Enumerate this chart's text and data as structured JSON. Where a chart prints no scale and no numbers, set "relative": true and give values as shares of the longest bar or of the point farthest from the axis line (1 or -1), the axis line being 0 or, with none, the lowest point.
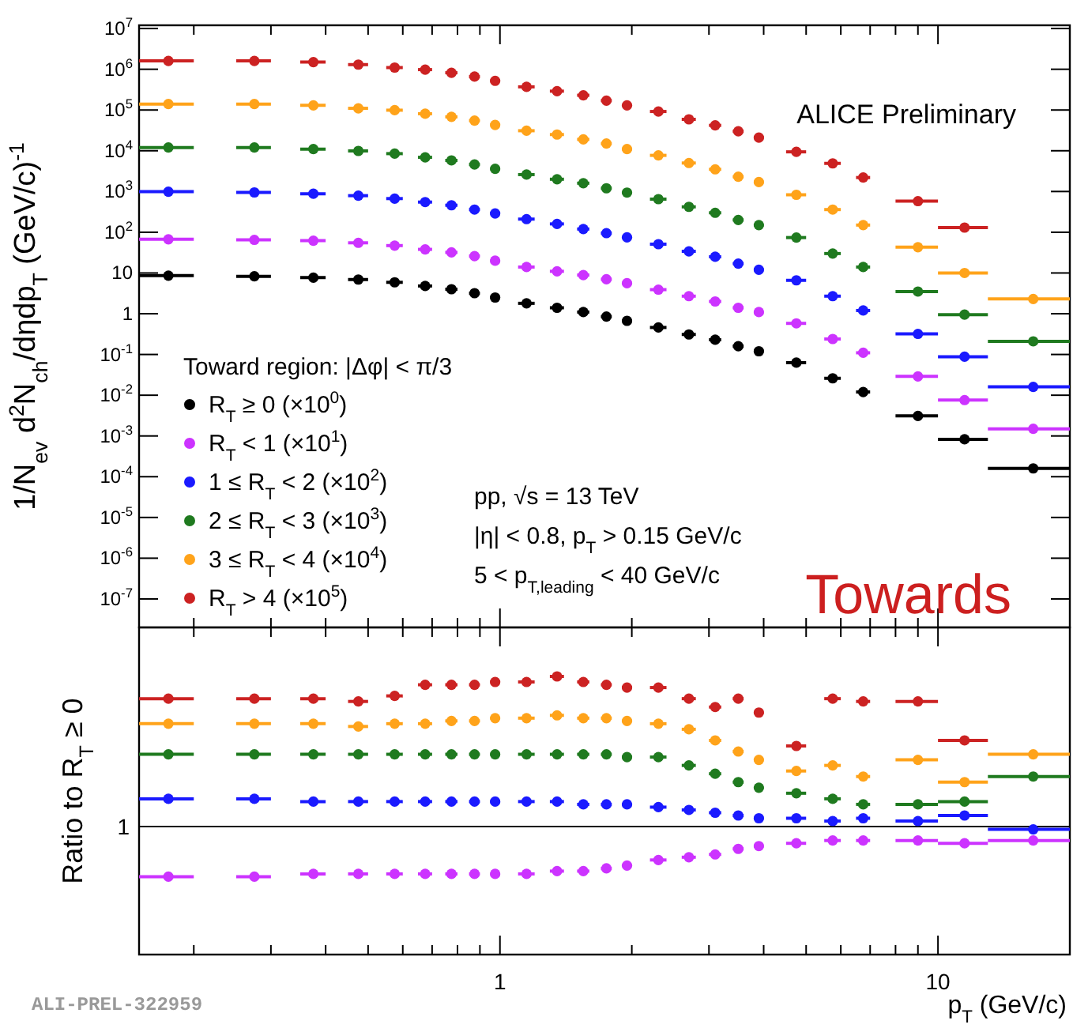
{
  "chart_data": [
    {
      "type": "scatter",
      "ylabel": "1/N$_{ev}$ d$^{2}$N$_{ch}$/dηdp$_{T}$ (GeV/c)$^{-1}$",
      "log": "xy",
      "xlim": [
        0.15,
        20
      ],
      "ylim": [
        2e-08,
        12000000.0
      ],
      "xticks": [
        {
          "value": 0.2,
          "label": null
        },
        {
          "value": 0.3,
          "label": null
        },
        {
          "value": 0.4,
          "label": null
        },
        {
          "value": 0.5,
          "label": null
        },
        {
          "value": 0.6,
          "label": null
        },
        {
          "value": 0.7,
          "label": null
        },
        {
          "value": 0.8,
          "label": null
        },
        {
          "value": 0.9,
          "label": null
        },
        {
          "value": 1,
          "label": null
        },
        {
          "value": 2,
          "label": null
        },
        {
          "value": 3,
          "label": null
        },
        {
          "value": 4,
          "label": null
        },
        {
          "value": 5,
          "label": null
        },
        {
          "value": 6,
          "label": null
        },
        {
          "value": 7,
          "label": null
        },
        {
          "value": 8,
          "label": null
        },
        {
          "value": 9,
          "label": null
        },
        {
          "value": 10,
          "label": null
        },
        {
          "value": 20,
          "label": null
        }
      ],
      "yticks": [
        {
          "value": 1e-07,
          "label": "10$^{-7}$"
        },
        {
          "value": 1e-06,
          "label": "10$^{-6}$"
        },
        {
          "value": 1e-05,
          "label": "10$^{-5}$"
        },
        {
          "value": 0.0001,
          "label": "10$^{-4}$"
        },
        {
          "value": 0.001,
          "label": "10$^{-3}$"
        },
        {
          "value": 0.01,
          "label": "10$^{-2}$"
        },
        {
          "value": 0.1,
          "label": "10$^{-1}$"
        },
        1,
        10,
        {
          "value": 100,
          "label": "10$^{2}$"
        },
        {
          "value": 1000,
          "label": "10$^{3}$"
        },
        {
          "value": 10000,
          "label": "10$^{4}$"
        },
        {
          "value": 100000,
          "label": "10$^{5}$"
        },
        {
          "value": 1000000,
          "label": "10$^{6}$"
        },
        {
          "value": 10000000,
          "label": "10$^{7}$"
        }
      ],
      "tick_labels": "y",
      "legend": "bottom left",
      "legend_title": "Toward region: |Δφ| < π/3",
      "marker": "circle",
      "x": [
        0.175,
        0.275,
        0.375,
        0.475,
        0.575,
        0.675,
        0.775,
        0.875,
        0.975,
        1.15,
        1.35,
        1.55,
        1.75,
        1.95,
        2.3,
        2.7,
        3.1,
        3.5,
        3.9,
        4.75,
        5.75,
        6.75,
        9,
        11.5,
        16.5
      ],
      "series": [
        {
          "name": "R$_{T}$ ≥ 0 (×10$^{0}$)",
          "color": "#000000",
          "values": [
            8.6,
            8.3,
            7.7,
            6.9,
            5.9,
            4.8,
            4.0,
            3.2,
            2.5,
            1.8,
            1.4,
            1.1,
            0.85,
            0.67,
            0.46,
            0.31,
            0.23,
            0.16,
            0.12,
            0.063,
            0.026,
            0.012,
            0.0031,
            0.00083,
            0.00016
          ],
          "xerrors": [
            0.025,
            0.025,
            0.025,
            0.025,
            0.025,
            0.025,
            0.025,
            0.025,
            0.025,
            0.05,
            0.05,
            0.05,
            0.05,
            0.05,
            0.1,
            0.1,
            0.1,
            0.1,
            0.1,
            0.25,
            0.25,
            0.25,
            1,
            1.5,
            3.5
          ]
        },
        {
          "name": "R$_{T}$ < 1 (×10$^{1}$)",
          "color": "#cc33ff",
          "values": [
            67,
            65,
            62,
            55,
            47,
            38,
            32,
            26,
            20,
            14,
            11,
            8.9,
            7.0,
            5.6,
            3.9,
            2.7,
            2.0,
            1.4,
            1.1,
            0.58,
            0.24,
            0.11,
            0.029,
            0.0076,
            0.0015
          ],
          "xerrors": [
            0.025,
            0.025,
            0.025,
            0.025,
            0.025,
            0.025,
            0.025,
            0.025,
            0.025,
            0.05,
            0.05,
            0.05,
            0.05,
            0.05,
            0.1,
            0.1,
            0.1,
            0.1,
            0.1,
            0.25,
            0.25,
            0.25,
            1,
            1.5,
            3.5
          ]
        },
        {
          "name": "1 ≤ R$_{T}$ < 2 (×10$^{2}$)",
          "color": "#1a1aff",
          "values": [
            990,
            950,
            880,
            790,
            670,
            550,
            460,
            360,
            290,
            210,
            160,
            120,
            95,
            75,
            51,
            34,
            25,
            17,
            12,
            6.6,
            2.7,
            1.2,
            0.32,
            0.088,
            0.016
          ],
          "xerrors": [
            0.025,
            0.025,
            0.025,
            0.025,
            0.025,
            0.025,
            0.025,
            0.025,
            0.025,
            0.05,
            0.05,
            0.05,
            0.05,
            0.05,
            0.1,
            0.1,
            0.1,
            0.1,
            0.1,
            0.25,
            0.25,
            0.25,
            1,
            1.5,
            3.5
          ]
        },
        {
          "name": "2 ≤ R$_{T}$ < 3 (×10$^{3}$)",
          "color": "#1f7a1f",
          "values": [
            12000,
            12000,
            11000,
            9900,
            8500,
            6900,
            5800,
            4600,
            3600,
            2600,
            2000,
            1600,
            1200,
            940,
            650,
            420,
            300,
            200,
            150,
            74,
            30,
            14,
            3.5,
            0.95,
            0.21
          ],
          "xerrors": [
            0.025,
            0.025,
            0.025,
            0.025,
            0.025,
            0.025,
            0.025,
            0.025,
            0.025,
            0.05,
            0.05,
            0.05,
            0.05,
            0.05,
            0.1,
            0.1,
            0.1,
            0.1,
            0.1,
            0.25,
            0.25,
            0.25,
            1,
            1.5,
            3.5
          ]
        },
        {
          "name": "3 ≤ R$_{T}$ < 4 (×10$^{4}$)",
          "color": "#ffa31a",
          "values": [
            140000,
            140000,
            130000,
            110000,
            99000,
            81000,
            68000,
            55000,
            43000,
            31000,
            25000,
            19000,
            15000,
            11000,
            7700,
            5000,
            3500,
            2300,
            1700,
            830,
            360,
            150,
            43,
            10,
            2.3
          ],
          "xerrors": [
            0.025,
            0.025,
            0.025,
            0.025,
            0.025,
            0.025,
            0.025,
            0.025,
            0.025,
            0.05,
            0.05,
            0.05,
            0.05,
            0.05,
            0.1,
            0.1,
            0.1,
            0.1,
            0.1,
            0.25,
            0.25,
            0.25,
            1,
            1.5,
            3.5
          ]
        },
        {
          "name": "R$_{T}$ > 4 (×10$^{5}$)",
          "color": "#cc2222",
          "values": [
            1600000,
            1600000,
            1500000,
            1300000,
            1100000,
            980000,
            820000,
            660000,
            520000,
            370000,
            290000,
            230000,
            170000,
            130000,
            92000,
            59000,
            42000,
            30000,
            21000,
            9400,
            4900,
            2200,
            580,
            130,
            null
          ],
          "xerrors": [
            0.025,
            0.025,
            0.025,
            0.025,
            0.025,
            0.025,
            0.025,
            0.025,
            0.025,
            0.05,
            0.05,
            0.05,
            0.05,
            0.05,
            0.1,
            0.1,
            0.1,
            0.1,
            0.1,
            0.25,
            0.25,
            0.25,
            1,
            1.5,
            null
          ]
        }
      ],
      "annotations": [
        "ALICE Preliminary",
        "pp, √s = 13 TeV",
        "|η| < 0.8, p$_{T}$ > 0.15 GeV/c",
        "5 < p$_{T,leading}$ < 40 GeV/c",
        "Towards"
      ]
    },
    {
      "type": "scatter",
      "xlabel": "p$_{T}$ (GeV/c)",
      "ylabel": "Ratio to R$_{T}$ ≥ 0",
      "log": "x",
      "xlim": [
        0.15,
        20
      ],
      "xticks": [
        {
          "value": 0.2,
          "label": null
        },
        {
          "value": 0.3,
          "label": null
        },
        {
          "value": 0.4,
          "label": null
        },
        {
          "value": 0.5,
          "label": null
        },
        {
          "value": 0.6,
          "label": null
        },
        {
          "value": 0.7,
          "label": null
        },
        {
          "value": 0.8,
          "label": null
        },
        {
          "value": 0.9,
          "label": null
        },
        1,
        {
          "value": 2,
          "label": null
        },
        {
          "value": 3,
          "label": null
        },
        {
          "value": 4,
          "label": null
        },
        {
          "value": 5,
          "label": null
        },
        {
          "value": 6,
          "label": null
        },
        {
          "value": 7,
          "label": null
        },
        {
          "value": 8,
          "label": null
        },
        {
          "value": 9,
          "label": null
        },
        10,
        {
          "value": 20,
          "label": null
        }
      ],
      "relative": true,
      "tick_labels": "x",
      "marker": "circle",
      "ref_lines": [
        {
          "axis": "y",
          "value": 0.46,
          "color": "#000000"
        }
      ],
      "x": [
        0.175,
        0.275,
        0.375,
        0.475,
        0.575,
        0.675,
        0.775,
        0.875,
        0.975,
        1.15,
        1.35,
        1.55,
        1.75,
        1.95,
        2.3,
        2.7,
        3.1,
        3.5,
        3.9,
        4.75,
        5.75,
        6.75,
        9,
        11.5,
        16.5
      ],
      "series": [
        {
          "color": "#cc33ff",
          "values": [
            0.28,
            0.28,
            0.29,
            0.29,
            0.29,
            0.29,
            0.29,
            0.29,
            0.29,
            0.29,
            0.3,
            0.3,
            0.31,
            0.32,
            0.34,
            0.35,
            0.36,
            0.38,
            0.39,
            0.4,
            0.41,
            0.41,
            0.41,
            0.4,
            0.41
          ],
          "xerrors": [
            0.025,
            0.025,
            0.025,
            0.025,
            0.025,
            0.025,
            0.025,
            0.025,
            0.025,
            0.05,
            0.05,
            0.05,
            0.05,
            0.05,
            0.1,
            0.1,
            0.1,
            0.1,
            0.1,
            0.25,
            0.25,
            0.25,
            1,
            1.5,
            3.5
          ]
        },
        {
          "color": "#1a1aff",
          "values": [
            0.56,
            0.56,
            0.55,
            0.55,
            0.55,
            0.55,
            0.55,
            0.55,
            0.55,
            0.55,
            0.55,
            0.54,
            0.54,
            0.54,
            0.53,
            0.52,
            0.51,
            0.5,
            0.49,
            0.49,
            0.48,
            0.49,
            0.48,
            0.5,
            0.45
          ],
          "xerrors": [
            0.025,
            0.025,
            0.025,
            0.025,
            0.025,
            0.025,
            0.025,
            0.025,
            0.025,
            0.05,
            0.05,
            0.05,
            0.05,
            0.05,
            0.1,
            0.1,
            0.1,
            0.1,
            0.1,
            0.25,
            0.25,
            0.25,
            1,
            1.5,
            3.5
          ]
        },
        {
          "color": "#1f7a1f",
          "values": [
            0.72,
            0.72,
            0.72,
            0.72,
            0.72,
            0.72,
            0.72,
            0.72,
            0.72,
            0.72,
            0.72,
            0.72,
            0.72,
            0.71,
            0.71,
            0.68,
            0.65,
            0.62,
            0.6,
            0.58,
            0.56,
            0.54,
            0.54,
            0.55,
            0.64
          ],
          "xerrors": [
            0.025,
            0.025,
            0.025,
            0.025,
            0.025,
            0.025,
            0.025,
            0.025,
            0.025,
            0.05,
            0.05,
            0.05,
            0.05,
            0.05,
            0.1,
            0.1,
            0.1,
            0.1,
            0.1,
            0.25,
            0.25,
            0.25,
            1,
            1.5,
            3.5
          ]
        },
        {
          "color": "#ffa31a",
          "values": [
            0.83,
            0.83,
            0.83,
            0.82,
            0.83,
            0.83,
            0.84,
            0.84,
            0.85,
            0.85,
            0.86,
            0.85,
            0.85,
            0.84,
            0.83,
            0.81,
            0.77,
            0.73,
            0.7,
            0.66,
            0.68,
            0.64,
            0.7,
            0.62,
            0.72
          ],
          "xerrors": [
            0.025,
            0.025,
            0.025,
            0.025,
            0.025,
            0.025,
            0.025,
            0.025,
            0.025,
            0.05,
            0.05,
            0.05,
            0.05,
            0.05,
            0.1,
            0.1,
            0.1,
            0.1,
            0.1,
            0.25,
            0.25,
            0.25,
            1,
            1.5,
            3.5
          ]
        },
        {
          "color": "#cc2222",
          "values": [
            0.92,
            0.92,
            0.92,
            0.91,
            0.93,
            0.97,
            0.97,
            0.97,
            0.98,
            0.98,
            1.0,
            0.98,
            0.97,
            0.96,
            0.96,
            0.92,
            0.89,
            0.92,
            0.87,
            0.75,
            0.92,
            0.91,
            0.91,
            0.77,
            null
          ],
          "xerrors": [
            0.025,
            0.025,
            0.025,
            0.025,
            0.025,
            0.025,
            0.025,
            0.025,
            0.025,
            0.05,
            0.05,
            0.05,
            0.05,
            0.05,
            0.1,
            0.1,
            0.1,
            0.1,
            0.1,
            0.25,
            0.25,
            0.25,
            1,
            1.5,
            null
          ]
        }
      ],
      "annotations": [
        "ALI-PREL-322959",
        "1"
      ]
    }
  ]
}
